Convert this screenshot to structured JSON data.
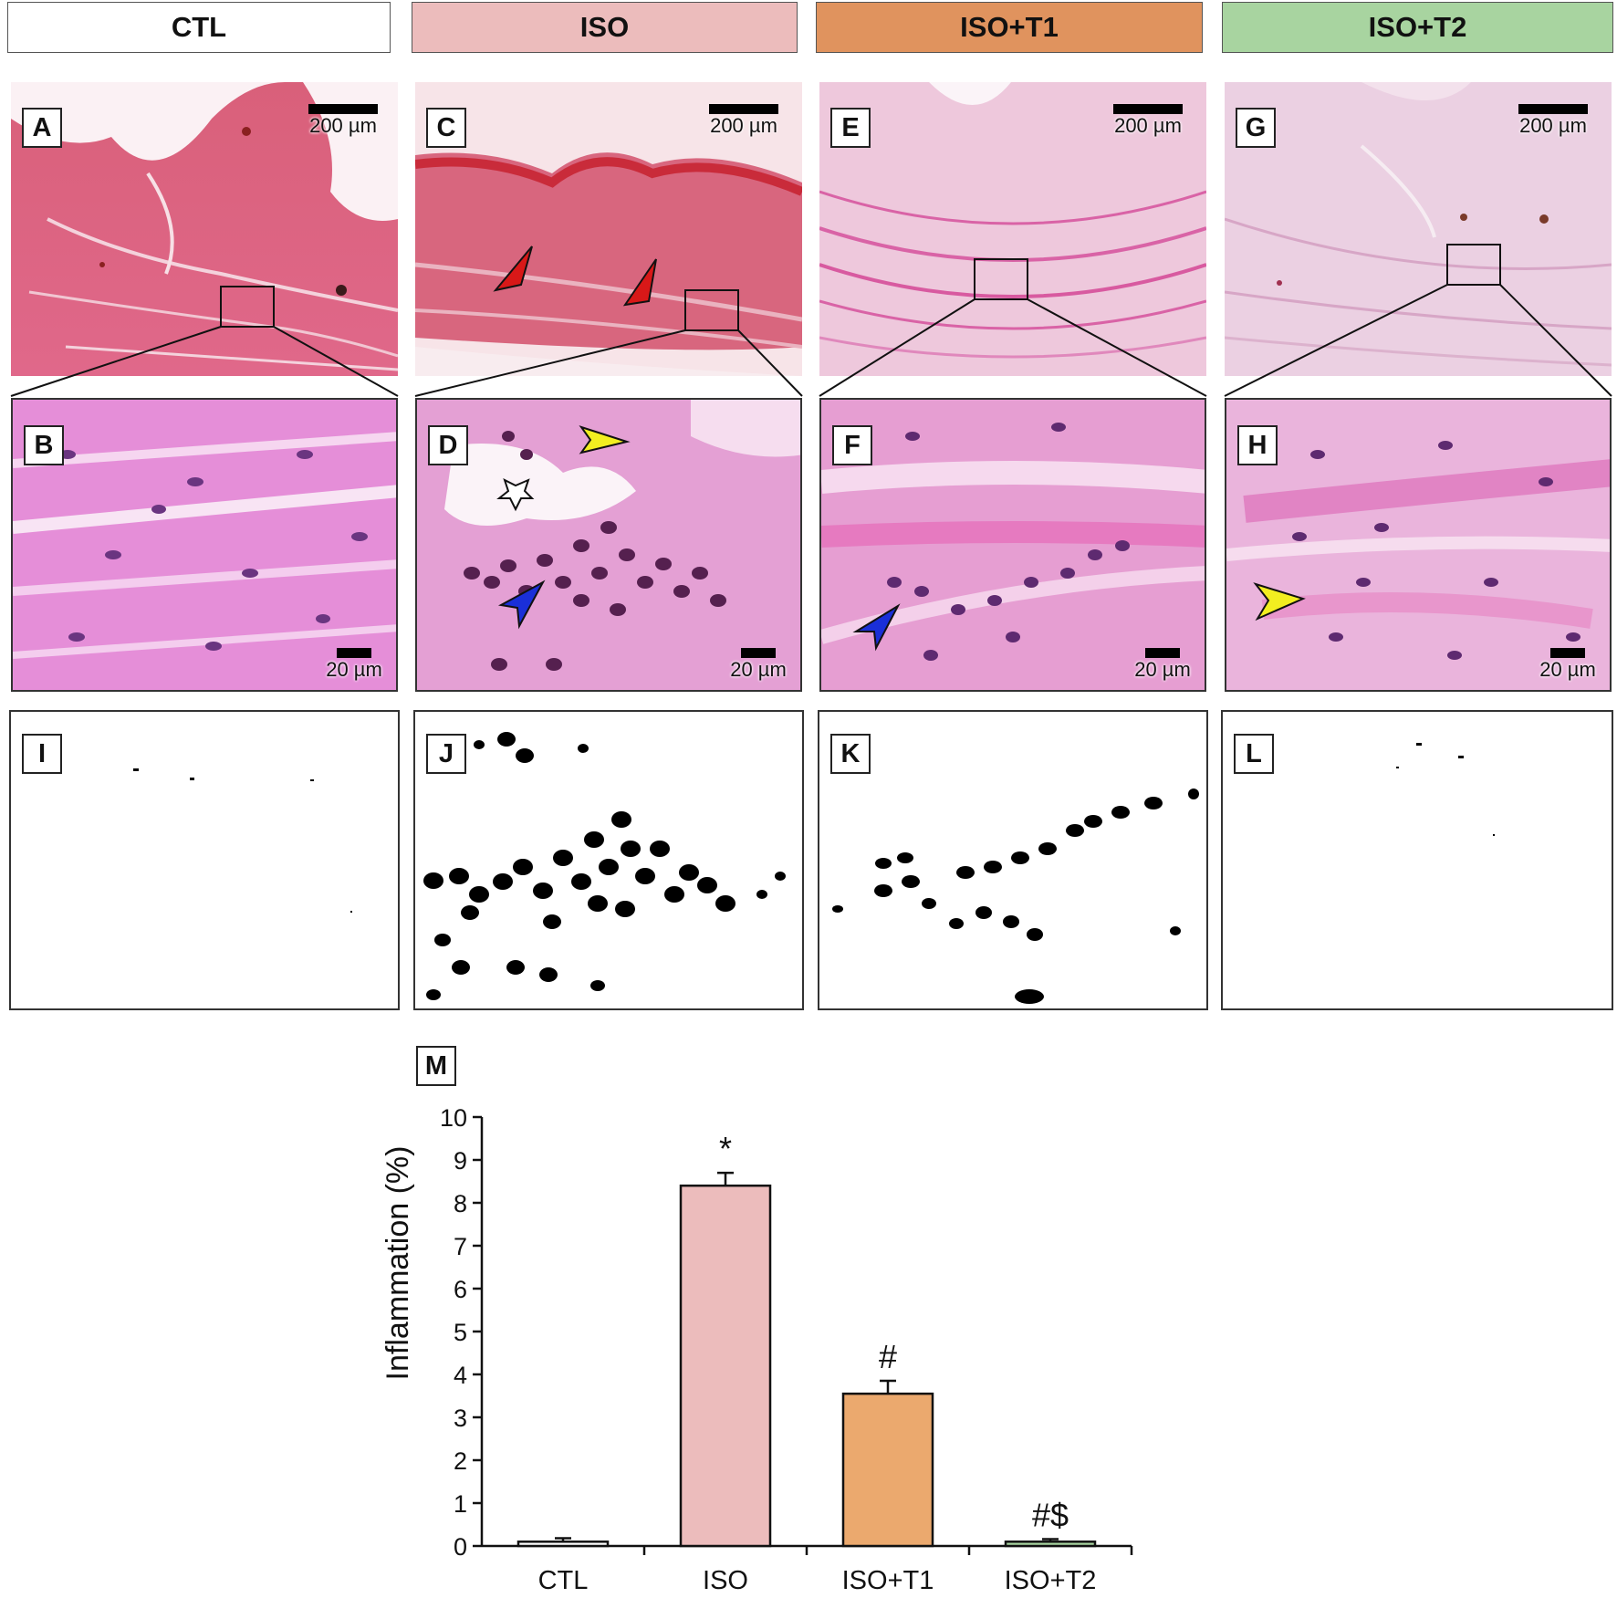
{
  "headers": [
    {
      "label": "CTL",
      "color": "#ffffff"
    },
    {
      "label": "ISO",
      "color": "#ecbcbc"
    },
    {
      "label": "ISO+T1",
      "color": "#e0935e"
    },
    {
      "label": "ISO+T2",
      "color": "#a8d4a0"
    }
  ],
  "panels": {
    "A": "A",
    "B": "B",
    "C": "C",
    "D": "D",
    "E": "E",
    "F": "F",
    "G": "G",
    "H": "H",
    "I": "I",
    "J": "J",
    "K": "K",
    "L": "L",
    "M": "M"
  },
  "scale_bars": {
    "low_mag": "200 µm",
    "high_mag": "20 µm"
  },
  "arrowhead_colors": {
    "red": "#d81818",
    "yellow": "#f2ee20",
    "blue": "#1a2fd8"
  },
  "chart_data": {
    "type": "bar",
    "categories": [
      "CTL",
      "ISO",
      "ISO+T1",
      "ISO+T2"
    ],
    "values": [
      0.1,
      8.4,
      3.55,
      0.1
    ],
    "errors": [
      0.08,
      0.3,
      0.3,
      0.06
    ],
    "annotations": [
      "",
      "*",
      "#",
      "#$"
    ],
    "colors": [
      "#ffffff",
      "#ecbcbc",
      "#eba96e",
      "#a8d4a0"
    ],
    "title": "",
    "xlabel": "",
    "ylabel": "Inflammation (%)",
    "ylim": [
      0,
      10
    ],
    "yticks": [
      0,
      1,
      2,
      3,
      4,
      5,
      6,
      7,
      8,
      9,
      10
    ],
    "grid": false
  }
}
